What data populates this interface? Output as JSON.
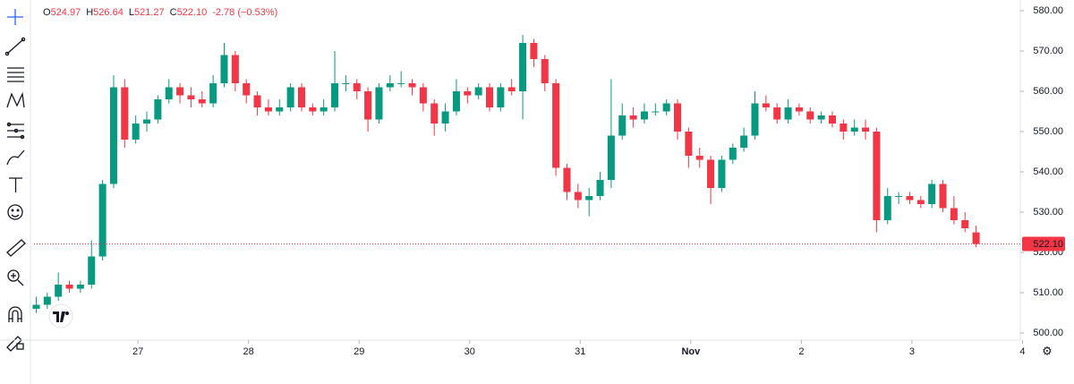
{
  "chart_data": {
    "type": "candlestick",
    "legend_keys": [
      "O",
      "H",
      "L",
      "C"
    ],
    "change": "-2.78 (−0.53%)",
    "last_price": {
      "value": 522.1,
      "label": "522.10"
    },
    "up_color": "#089981",
    "down_color": "#f23645",
    "xlim": [
      26.06,
      34.98
    ],
    "xticks": [
      27,
      28,
      29,
      30,
      31,
      {
        "value": 32,
        "label": "Nov"
      },
      {
        "value": 33,
        "label": "2"
      },
      {
        "value": 34,
        "label": "3"
      },
      {
        "value": 35,
        "label": "4"
      }
    ],
    "ylim": [
      500,
      580
    ],
    "yticks": [
      {
        "value": 500,
        "label": "500.00"
      },
      {
        "value": 510,
        "label": "510.00"
      },
      {
        "value": 520,
        "label": "520.00"
      },
      {
        "value": 530,
        "label": "530.00"
      },
      {
        "value": 540,
        "label": "540.00"
      },
      {
        "value": 550,
        "label": "550.00"
      },
      {
        "value": 560,
        "label": "560.00"
      },
      {
        "value": 570,
        "label": "570.00"
      },
      {
        "value": 580,
        "label": "580.00"
      }
    ],
    "x": [
      26.08,
      26.18,
      26.28,
      26.38,
      26.48,
      26.58,
      26.68,
      26.78,
      26.88,
      26.98,
      27.08,
      27.18,
      27.28,
      27.38,
      27.48,
      27.58,
      27.68,
      27.78,
      27.88,
      27.98,
      28.08,
      28.18,
      28.28,
      28.38,
      28.48,
      28.58,
      28.68,
      28.78,
      28.88,
      28.98,
      29.08,
      29.18,
      29.28,
      29.38,
      29.48,
      29.58,
      29.68,
      29.78,
      29.88,
      29.98,
      30.08,
      30.18,
      30.28,
      30.38,
      30.48,
      30.58,
      30.68,
      30.78,
      30.88,
      30.98,
      31.08,
      31.18,
      31.28,
      31.38,
      31.48,
      31.58,
      31.68,
      31.78,
      31.88,
      31.98,
      32.08,
      32.18,
      32.28,
      32.38,
      32.48,
      32.58,
      32.68,
      32.78,
      32.88,
      32.98,
      33.08,
      33.18,
      33.28,
      33.38,
      33.48,
      33.58,
      33.68,
      33.78,
      33.88,
      33.98,
      34.08,
      34.18,
      34.28,
      34.38,
      34.48,
      34.58
    ],
    "open": [
      506,
      507,
      509,
      512,
      511,
      512,
      519,
      537,
      561,
      548,
      552,
      553,
      558,
      561,
      559,
      558,
      557,
      562,
      569,
      562,
      559,
      556,
      555,
      556,
      561,
      556,
      555,
      556,
      562,
      562,
      560,
      553,
      561,
      562,
      562,
      561,
      557,
      552,
      555,
      560,
      559,
      561,
      556,
      561,
      560,
      572,
      568,
      562,
      541,
      535,
      533,
      534,
      538,
      549,
      554,
      553,
      555,
      555,
      557,
      550,
      544,
      543,
      536,
      543,
      546,
      549,
      557,
      556,
      553,
      556,
      555,
      553,
      554,
      552,
      550,
      551,
      550,
      528,
      534,
      534,
      533,
      532,
      537,
      531,
      528,
      524.97
    ],
    "high": [
      509,
      510,
      515,
      513,
      513,
      523,
      538,
      564,
      563,
      554,
      555,
      559,
      563,
      562,
      561,
      560,
      564,
      572,
      570,
      563,
      560,
      558,
      558,
      562,
      562,
      557,
      558,
      570,
      564,
      563,
      561,
      562,
      564,
      565,
      563,
      562,
      558,
      557,
      563,
      561,
      562,
      562,
      562,
      563,
      574,
      573,
      569,
      563,
      542,
      537,
      536,
      540,
      563,
      557,
      556,
      557,
      557,
      558,
      558,
      551,
      546,
      544,
      544,
      547,
      551,
      560,
      559,
      557,
      558,
      557,
      556,
      555,
      555,
      553,
      553,
      553,
      551,
      536,
      535,
      535,
      534,
      538,
      538,
      534,
      530,
      526.64
    ],
    "low": [
      505,
      506,
      508,
      510,
      510,
      511,
      518,
      536,
      546,
      547,
      550,
      552,
      557,
      557,
      556,
      556,
      556,
      561,
      560,
      557,
      554,
      554,
      554,
      555,
      555,
      554,
      554,
      555,
      560,
      558,
      550,
      552,
      560,
      561,
      559,
      555,
      549,
      550,
      554,
      557,
      558,
      555,
      555,
      559,
      553,
      566,
      560,
      539,
      533,
      531,
      529,
      533,
      536,
      548,
      551,
      552,
      554,
      554,
      548,
      541,
      541,
      532,
      535,
      542,
      545,
      548,
      555,
      552,
      552,
      554,
      552,
      552,
      551,
      548,
      549,
      548,
      525,
      527,
      532,
      532,
      531,
      531,
      530,
      527,
      525,
      521.27
    ],
    "close": [
      507,
      509,
      512,
      511,
      512,
      519,
      537,
      561,
      548,
      552,
      553,
      558,
      561,
      559,
      558,
      557,
      562,
      569,
      562,
      559,
      556,
      555,
      556,
      561,
      556,
      555,
      556,
      562,
      562,
      560,
      553,
      561,
      562,
      562,
      561,
      557,
      552,
      555,
      560,
      559,
      561,
      556,
      561,
      560,
      572,
      568,
      562,
      541,
      535,
      533,
      534,
      538,
      549,
      554,
      553,
      555,
      555,
      557,
      550,
      544,
      543,
      536,
      543,
      546,
      549,
      557,
      556,
      553,
      556,
      555,
      553,
      554,
      552,
      550,
      551,
      550,
      528,
      534,
      534,
      533,
      532,
      537,
      531,
      528,
      526,
      522.1
    ]
  }
}
